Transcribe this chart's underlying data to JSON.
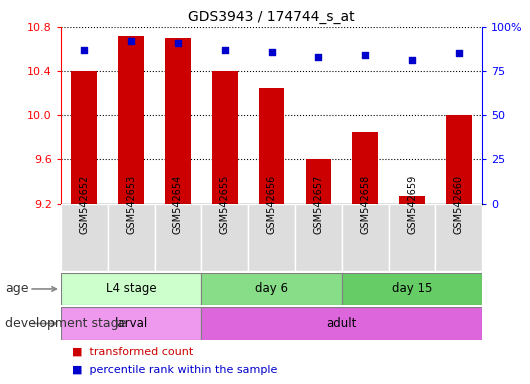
{
  "title": "GDS3943 / 174744_s_at",
  "samples": [
    "GSM542652",
    "GSM542653",
    "GSM542654",
    "GSM542655",
    "GSM542656",
    "GSM542657",
    "GSM542658",
    "GSM542659",
    "GSM542660"
  ],
  "transformed_count": [
    10.4,
    10.72,
    10.7,
    10.4,
    10.25,
    9.6,
    9.85,
    9.27,
    10.0
  ],
  "percentile_rank": [
    87,
    92,
    91,
    87,
    86,
    83,
    84,
    81,
    85
  ],
  "ylim_left": [
    9.2,
    10.8
  ],
  "ylim_right": [
    0,
    100
  ],
  "yticks_left": [
    9.2,
    9.6,
    10.0,
    10.4,
    10.8
  ],
  "yticks_right": [
    0,
    25,
    50,
    75,
    100
  ],
  "bar_color": "#cc0000",
  "dot_color": "#0000cc",
  "age_groups": [
    {
      "label": "L4 stage",
      "start": 0,
      "end": 3,
      "color": "#ccffcc"
    },
    {
      "label": "day 6",
      "start": 3,
      "end": 6,
      "color": "#88dd88"
    },
    {
      "label": "day 15",
      "start": 6,
      "end": 9,
      "color": "#66cc66"
    }
  ],
  "dev_groups": [
    {
      "label": "larval",
      "start": 0,
      "end": 3,
      "color": "#ee99ee"
    },
    {
      "label": "adult",
      "start": 3,
      "end": 9,
      "color": "#dd66dd"
    }
  ],
  "legend_items": [
    {
      "color": "#cc0000",
      "label": "transformed count"
    },
    {
      "color": "#0000cc",
      "label": "percentile rank within the sample"
    }
  ],
  "bar_width": 0.55,
  "base_value": 9.2,
  "sample_area_bg": "#dddddd",
  "age_label_color": "#333333",
  "dev_label_color": "#333333",
  "arrow_color": "#888888"
}
